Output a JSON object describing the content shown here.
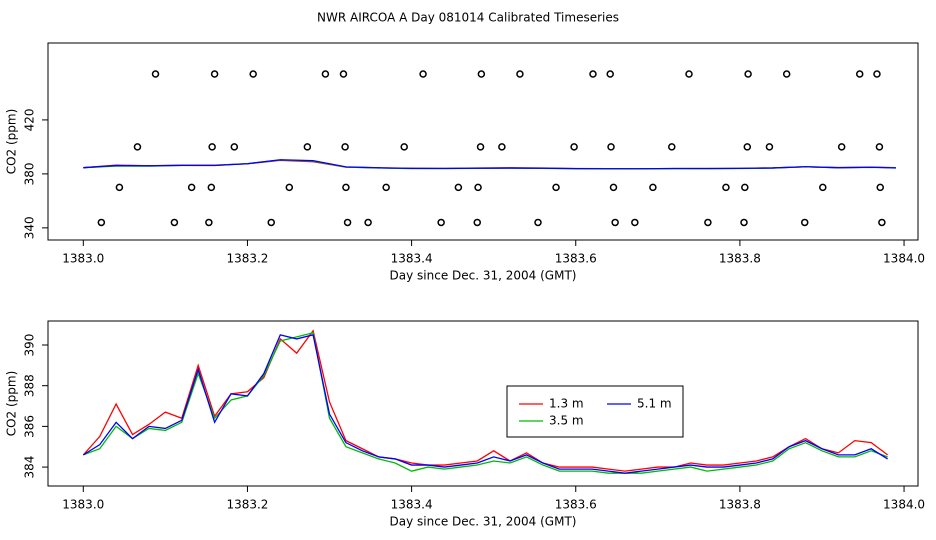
{
  "title": "NWR AIRCOA A  Day 081014  Calibrated Timeseries",
  "chart_data": [
    {
      "type": "line",
      "xlabel": "Day since Dec. 31, 2004 (GMT)",
      "ylabel": "CO2 (ppm)",
      "xlim": [
        1382.957,
        1384.017
      ],
      "ylim": [
        331,
        477
      ],
      "xticks": [
        {
          "value": 1383,
          "label": "1383.0"
        },
        {
          "value": 1383.2,
          "label": "1383.2"
        },
        {
          "value": 1383.4,
          "label": "1383.4"
        },
        {
          "value": 1383.6,
          "label": "1383.6"
        },
        {
          "value": 1383.8,
          "label": "1383.8"
        },
        {
          "value": 1384,
          "label": "1384.0"
        }
      ],
      "yticks": [
        340,
        380,
        420
      ],
      "series": [
        {
          "color": "#ff0000",
          "x": [
            1383,
            1383.04,
            1383.08,
            1383.12,
            1383.16,
            1383.2,
            1383.24,
            1383.28,
            1383.32,
            1383.36,
            1383.4,
            1383.44,
            1383.48,
            1383.52,
            1383.56,
            1383.6,
            1383.64,
            1383.68,
            1383.72,
            1383.76,
            1383.8,
            1383.84,
            1383.88,
            1383.92,
            1383.96,
            1383.99
          ],
          "values": [
            384.6,
            386.5,
            386,
            386.5,
            386.5,
            387.5,
            390,
            389,
            385,
            384.5,
            384.2,
            384.1,
            384.3,
            384.5,
            384.3,
            384,
            383.9,
            383.8,
            384,
            384,
            384.1,
            384.4,
            385.3,
            384.7,
            385,
            384.6
          ]
        },
        {
          "color": "#00bb00",
          "x": [
            1383,
            1383.04,
            1383.08,
            1383.12,
            1383.16,
            1383.2,
            1383.24,
            1383.28,
            1383.32,
            1383.36,
            1383.4,
            1383.44,
            1383.48,
            1383.52,
            1383.56,
            1383.6,
            1383.64,
            1383.68,
            1383.72,
            1383.76,
            1383.8,
            1383.84,
            1383.88,
            1383.92,
            1383.96,
            1383.99
          ],
          "values": [
            384.6,
            385.8,
            385.8,
            386.2,
            386.3,
            387.6,
            390.3,
            389.5,
            385,
            384.4,
            383.9,
            384,
            384.1,
            384.3,
            384.1,
            383.8,
            383.8,
            383.7,
            383.9,
            383.8,
            384,
            384.3,
            385.3,
            384.5,
            384.8,
            384.5
          ]
        },
        {
          "color": "#0000ff",
          "x": [
            1383,
            1383.04,
            1383.08,
            1383.12,
            1383.16,
            1383.2,
            1383.24,
            1383.28,
            1383.32,
            1383.36,
            1383.4,
            1383.44,
            1383.48,
            1383.52,
            1383.56,
            1383.6,
            1383.64,
            1383.68,
            1383.72,
            1383.76,
            1383.8,
            1383.84,
            1383.88,
            1383.92,
            1383.96,
            1383.99
          ],
          "values": [
            384.6,
            386.2,
            386,
            386.3,
            386.2,
            387.5,
            390.5,
            389.8,
            385.2,
            384.5,
            384.1,
            384,
            384.2,
            384.3,
            384.2,
            383.9,
            383.8,
            383.8,
            384,
            384,
            384.1,
            384.4,
            385.3,
            384.6,
            384.9,
            384.4
          ]
        },
        {
          "type": "scatter",
          "color": "#000000",
          "x": [
            1383.088,
            1383.16,
            1383.207,
            1383.295,
            1383.317,
            1383.414,
            1383.485,
            1383.532,
            1383.621,
            1383.642,
            1383.738,
            1383.81,
            1383.857,
            1383.946,
            1383.967,
            1383.066,
            1383.157,
            1383.184,
            1383.273,
            1383.319,
            1383.391,
            1383.484,
            1383.51,
            1383.598,
            1383.643,
            1383.717,
            1383.809,
            1383.836,
            1383.924,
            1383.97,
            1383.044,
            1383.132,
            1383.156,
            1383.251,
            1383.32,
            1383.369,
            1383.457,
            1383.481,
            1383.576,
            1383.646,
            1383.694,
            1383.783,
            1383.806,
            1383.901,
            1383.971,
            1383.022,
            1383.111,
            1383.153,
            1383.229,
            1383.322,
            1383.347,
            1383.436,
            1383.48,
            1383.554,
            1383.648,
            1383.672,
            1383.761,
            1383.805,
            1383.879,
            1383.973
          ],
          "values": [
            454,
            454,
            454,
            454,
            454,
            454,
            454,
            454,
            454,
            454,
            454,
            454,
            454,
            454,
            454,
            400,
            400,
            400,
            400,
            400,
            400,
            400,
            400,
            400,
            400,
            400,
            400,
            400,
            400,
            400,
            370,
            370,
            370,
            370,
            370,
            370,
            370,
            370,
            370,
            370,
            370,
            370,
            370,
            370,
            370,
            344,
            344,
            344,
            344,
            344,
            344,
            344,
            344,
            344,
            344,
            344,
            344,
            344,
            344,
            344
          ]
        }
      ]
    },
    {
      "type": "line",
      "xlabel": "Day since Dec. 31, 2004 (GMT)",
      "ylabel": "CO2 (ppm)",
      "xlim": [
        1382.957,
        1384.017
      ],
      "ylim": [
        383.07,
        391.18
      ],
      "xticks": [
        {
          "value": 1383,
          "label": "1383.0"
        },
        {
          "value": 1383.2,
          "label": "1383.2"
        },
        {
          "value": 1383.4,
          "label": "1383.4"
        },
        {
          "value": 1383.6,
          "label": "1383.6"
        },
        {
          "value": 1383.8,
          "label": "1383.8"
        },
        {
          "value": 1384,
          "label": "1384.0"
        }
      ],
      "yticks": [
        384,
        386,
        388,
        390
      ],
      "series": [
        {
          "name": "1.3 m",
          "color": "#ff0000",
          "x": [
            1383,
            1383.02,
            1383.04,
            1383.06,
            1383.08,
            1383.1,
            1383.12,
            1383.14,
            1383.16,
            1383.18,
            1383.2,
            1383.22,
            1383.24,
            1383.26,
            1383.28,
            1383.3,
            1383.32,
            1383.34,
            1383.36,
            1383.38,
            1383.4,
            1383.42,
            1383.44,
            1383.46,
            1383.48,
            1383.5,
            1383.52,
            1383.54,
            1383.56,
            1383.58,
            1383.6,
            1383.62,
            1383.64,
            1383.66,
            1383.68,
            1383.7,
            1383.72,
            1383.74,
            1383.76,
            1383.78,
            1383.8,
            1383.82,
            1383.84,
            1383.86,
            1383.88,
            1383.9,
            1383.92,
            1383.94,
            1383.96,
            1383.98
          ],
          "values": [
            384.6,
            385.5,
            387.1,
            385.6,
            386.1,
            386.7,
            386.4,
            389,
            386.5,
            387.6,
            387.7,
            388.4,
            390.3,
            389.6,
            390.7,
            387.2,
            385.3,
            384.9,
            384.5,
            384.4,
            384.2,
            384.1,
            384.1,
            384.2,
            384.3,
            384.8,
            384.3,
            384.7,
            384.2,
            384,
            384,
            384,
            383.9,
            383.8,
            383.9,
            384,
            384,
            384.2,
            384.1,
            384.1,
            384.2,
            384.3,
            384.5,
            385,
            385.4,
            384.9,
            384.7,
            385.3,
            385.2,
            384.6
          ]
        },
        {
          "name": "3.5 m",
          "color": "#00bb00",
          "x": [
            1383,
            1383.02,
            1383.04,
            1383.06,
            1383.08,
            1383.1,
            1383.12,
            1383.14,
            1383.16,
            1383.18,
            1383.2,
            1383.22,
            1383.24,
            1383.26,
            1383.28,
            1383.3,
            1383.32,
            1383.34,
            1383.36,
            1383.38,
            1383.4,
            1383.42,
            1383.44,
            1383.46,
            1383.48,
            1383.5,
            1383.52,
            1383.54,
            1383.56,
            1383.58,
            1383.6,
            1383.62,
            1383.64,
            1383.66,
            1383.68,
            1383.7,
            1383.72,
            1383.74,
            1383.76,
            1383.78,
            1383.8,
            1383.82,
            1383.84,
            1383.86,
            1383.88,
            1383.9,
            1383.92,
            1383.94,
            1383.96,
            1383.98
          ],
          "values": [
            384.6,
            384.9,
            386,
            385.4,
            385.9,
            385.8,
            386.2,
            388.6,
            386.4,
            387.3,
            387.5,
            388.5,
            390.2,
            390.4,
            390.6,
            386.4,
            385,
            384.7,
            384.4,
            384.2,
            383.8,
            384,
            383.9,
            384,
            384.1,
            384.3,
            384.2,
            384.5,
            384.1,
            383.8,
            383.8,
            383.8,
            383.7,
            383.7,
            383.7,
            383.8,
            383.9,
            384,
            383.8,
            383.9,
            384,
            384.1,
            384.3,
            384.9,
            385.2,
            384.8,
            384.5,
            384.5,
            384.8,
            384.5
          ]
        },
        {
          "name": "5.1 m",
          "color": "#0000ff",
          "x": [
            1383,
            1383.02,
            1383.04,
            1383.06,
            1383.08,
            1383.1,
            1383.12,
            1383.14,
            1383.16,
            1383.18,
            1383.2,
            1383.22,
            1383.24,
            1383.26,
            1383.28,
            1383.3,
            1383.32,
            1383.34,
            1383.36,
            1383.38,
            1383.4,
            1383.42,
            1383.44,
            1383.46,
            1383.48,
            1383.5,
            1383.52,
            1383.54,
            1383.56,
            1383.58,
            1383.6,
            1383.62,
            1383.64,
            1383.66,
            1383.68,
            1383.7,
            1383.72,
            1383.74,
            1383.76,
            1383.78,
            1383.8,
            1383.82,
            1383.84,
            1383.86,
            1383.88,
            1383.9,
            1383.92,
            1383.94,
            1383.96,
            1383.98
          ],
          "values": [
            384.6,
            385.1,
            386.2,
            385.4,
            386,
            385.9,
            386.3,
            388.8,
            386.2,
            387.6,
            387.5,
            388.6,
            390.5,
            390.3,
            390.5,
            386.6,
            385.2,
            384.8,
            384.5,
            384.4,
            384.1,
            384.1,
            384,
            384.1,
            384.2,
            384.5,
            384.3,
            384.6,
            384.2,
            383.9,
            383.9,
            383.9,
            383.8,
            383.7,
            383.8,
            383.9,
            384,
            384.1,
            384,
            384,
            384.1,
            384.2,
            384.4,
            385,
            385.3,
            384.9,
            384.6,
            384.6,
            384.9,
            384.4
          ]
        }
      ]
    }
  ]
}
